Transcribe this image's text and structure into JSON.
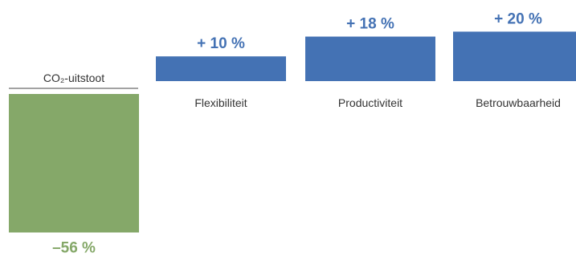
{
  "chart_data": {
    "type": "bar",
    "title": "",
    "xlabel": "",
    "ylabel": "",
    "categories": [
      "CO₂-uitstoot",
      "Flexibiliteit",
      "Productiviteit",
      "Betrouwbaarheid"
    ],
    "values": [
      -56,
      10,
      18,
      20
    ],
    "value_labels": [
      "–56 %",
      "+ 10 %",
      "+ 18 %",
      "+ 20 %"
    ],
    "ylim": [
      -60,
      22
    ],
    "grid": false,
    "legend": "none",
    "colors": {
      "negative": "#85a869",
      "positive": "#4472b4",
      "negative_label": "#85a869",
      "positive_label": "#4472b4",
      "axis_line": "#444444"
    }
  }
}
